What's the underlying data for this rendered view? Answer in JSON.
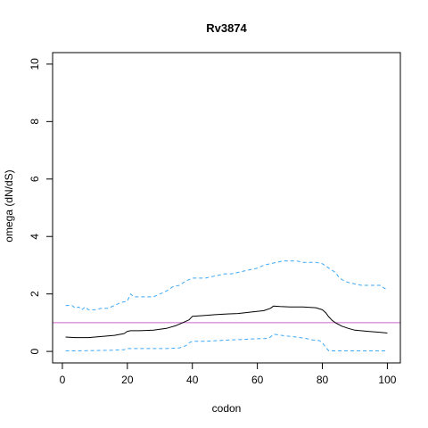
{
  "chart_data": {
    "type": "line",
    "title": "Rv3874",
    "xlabel": "codon",
    "ylabel": "omega (dN/dS)",
    "xlim": [
      -3,
      104
    ],
    "ylim": [
      -0.4,
      10.4
    ],
    "x_ticks": [
      0,
      20,
      40,
      60,
      80,
      100
    ],
    "y_ticks": [
      0,
      2,
      4,
      6,
      8,
      10
    ],
    "x_tick_labels": [
      "0",
      "20",
      "40",
      "60",
      "80",
      "100"
    ],
    "y_tick_labels": [
      "0",
      "2",
      "4",
      "6",
      "8",
      "10"
    ],
    "grid": false,
    "reference_line": {
      "y": 1,
      "color": "#cc66cc"
    },
    "series": [
      {
        "role": "upper",
        "style": "dashed",
        "color": "#3fa9f5",
        "x": [
          1,
          3,
          4,
          5,
          6,
          7,
          8,
          10,
          12,
          14,
          16,
          18,
          20,
          21,
          22,
          24,
          26,
          28,
          30,
          32,
          34,
          36,
          38,
          40,
          42,
          44,
          46,
          48,
          50,
          52,
          54,
          56,
          58,
          60,
          62,
          64,
          66,
          68,
          70,
          72,
          74,
          76,
          78,
          80,
          82,
          84,
          85,
          86,
          87,
          88,
          90,
          92,
          94,
          96,
          98,
          99,
          100
        ],
        "y": [
          1.6,
          1.6,
          1.5,
          1.55,
          1.45,
          1.55,
          1.45,
          1.45,
          1.5,
          1.5,
          1.6,
          1.7,
          1.75,
          2.0,
          1.9,
          1.9,
          1.9,
          1.9,
          2.0,
          2.1,
          2.25,
          2.3,
          2.45,
          2.55,
          2.55,
          2.55,
          2.6,
          2.65,
          2.7,
          2.7,
          2.75,
          2.8,
          2.85,
          2.9,
          3.0,
          3.05,
          3.1,
          3.15,
          3.15,
          3.15,
          3.1,
          3.1,
          3.1,
          3.05,
          2.9,
          2.75,
          2.6,
          2.5,
          2.45,
          2.4,
          2.35,
          2.3,
          2.3,
          2.3,
          2.3,
          2.2,
          2.15
        ]
      },
      {
        "role": "estimate",
        "style": "solid",
        "color": "#000000",
        "x": [
          1,
          4,
          8,
          12,
          16,
          19,
          20,
          21,
          24,
          28,
          32,
          35,
          37,
          39,
          40,
          44,
          47,
          50,
          54,
          58,
          62,
          64,
          65,
          67,
          70,
          74,
          78,
          80,
          81,
          82,
          83,
          84,
          86,
          88,
          90,
          94,
          98,
          100
        ],
        "y": [
          0.5,
          0.48,
          0.48,
          0.52,
          0.56,
          0.62,
          0.7,
          0.72,
          0.72,
          0.74,
          0.8,
          0.9,
          1.0,
          1.1,
          1.22,
          1.25,
          1.28,
          1.3,
          1.32,
          1.37,
          1.42,
          1.5,
          1.58,
          1.56,
          1.55,
          1.55,
          1.52,
          1.45,
          1.35,
          1.2,
          1.08,
          1.0,
          0.88,
          0.8,
          0.74,
          0.7,
          0.66,
          0.64
        ]
      },
      {
        "role": "lower",
        "style": "dashed",
        "color": "#3fa9f5",
        "x": [
          1,
          5,
          10,
          15,
          19,
          20,
          24,
          28,
          32,
          36,
          38,
          39,
          40,
          44,
          48,
          52,
          56,
          60,
          63,
          64,
          65,
          68,
          72,
          75,
          77,
          79,
          80,
          81,
          82,
          90,
          100
        ],
        "y": [
          0.02,
          0.02,
          0.03,
          0.04,
          0.06,
          0.1,
          0.1,
          0.1,
          0.1,
          0.12,
          0.2,
          0.3,
          0.35,
          0.35,
          0.38,
          0.4,
          0.42,
          0.44,
          0.45,
          0.5,
          0.6,
          0.55,
          0.5,
          0.45,
          0.4,
          0.38,
          0.3,
          0.15,
          0.02,
          0.02,
          0.02
        ]
      }
    ]
  }
}
